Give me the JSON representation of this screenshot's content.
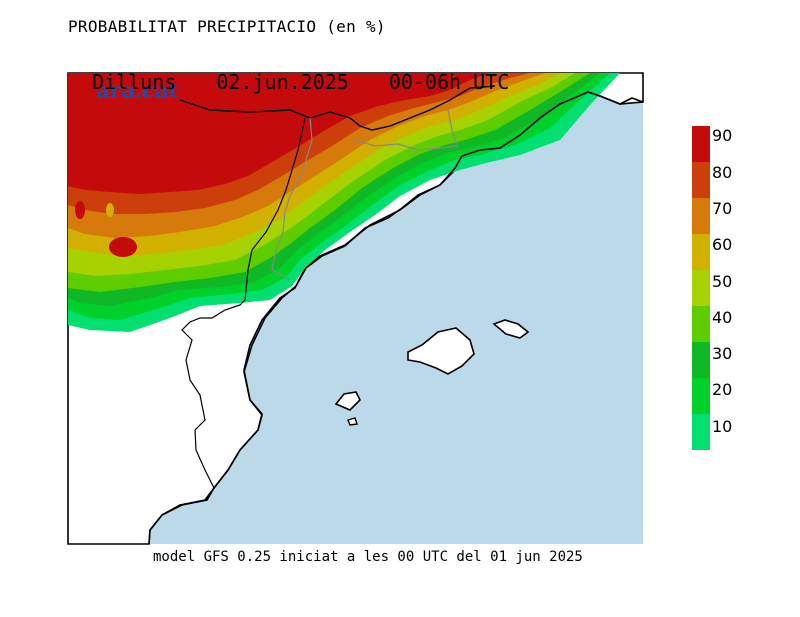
{
  "header": {
    "title": "PROBABILITAT PRECIPITACIO (en %)",
    "day": "Dilluns",
    "date": "02.jun.2025",
    "hours": "00-06h UTC"
  },
  "brand": "ara.cat",
  "footer": "model GFS 0.25 iniciat a les 00 UTC del 01 jun 2025",
  "legend": {
    "levels": [
      {
        "label": "90",
        "color": "#c40a0a"
      },
      {
        "label": "80",
        "color": "#cc3f0a"
      },
      {
        "label": "70",
        "color": "#d77a0c"
      },
      {
        "label": "60",
        "color": "#d2b000"
      },
      {
        "label": "50",
        "color": "#a5d200"
      },
      {
        "label": "40",
        "color": "#5ecd00"
      },
      {
        "label": "30",
        "color": "#11b826"
      },
      {
        "label": "20",
        "color": "#00d02a"
      },
      {
        "label": "10",
        "color": "#00df6f"
      }
    ],
    "bottom_color": "#00e08c"
  },
  "colors": {
    "sea": "#bcd9ea",
    "land": "#ffffff"
  }
}
